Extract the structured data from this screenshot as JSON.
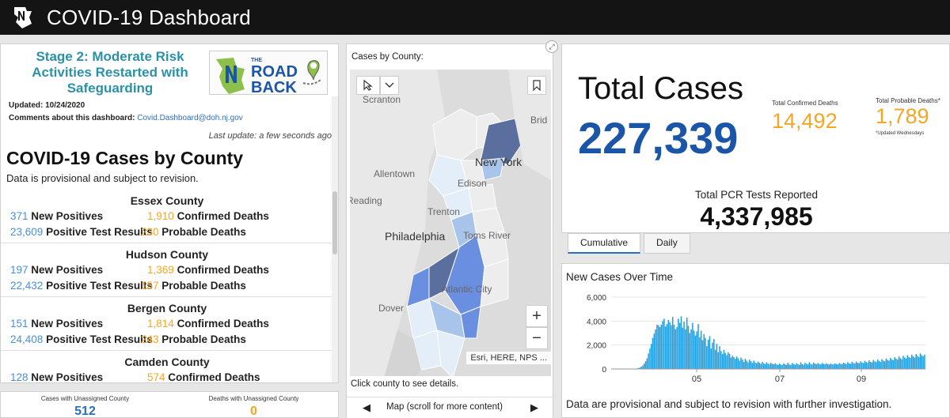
{
  "header": {
    "title": "COVID-19 Dashboard"
  },
  "stage": {
    "text": "Stage 2: Moderate Risk Activities Restarted with Safeguarding",
    "logo_small": "THE",
    "logo_big1": "ROAD",
    "logo_big2": "BACK"
  },
  "info": {
    "updated": "Updated: 10/24/2020",
    "comments_label": "Comments about this dashboard:",
    "email": "Covid.Dashboard@doh.nj.gov",
    "last_update": "Last update: a few seconds ago"
  },
  "list": {
    "title": "COVID-19 Cases by County",
    "subtitle": "Data is provisional and subject to revision.",
    "counties": [
      {
        "name": "Essex County",
        "new_pos": "371",
        "new_pos_label": "New Positives",
        "conf_deaths": "1,910",
        "conf_deaths_label": "Confirmed Deaths",
        "pos_tests": "23,609",
        "pos_tests_label": "Positive Test Results",
        "prob_deaths": "230",
        "prob_deaths_label": "Probable Deaths"
      },
      {
        "name": "Hudson County",
        "new_pos": "197",
        "new_pos_label": "New Positives",
        "conf_deaths": "1,369",
        "conf_deaths_label": "Confirmed Deaths",
        "pos_tests": "22,432",
        "pos_tests_label": "Positive Test Results",
        "prob_deaths": "157",
        "prob_deaths_label": "Probable Deaths"
      },
      {
        "name": "Bergen County",
        "new_pos": "151",
        "new_pos_label": "New Positives",
        "conf_deaths": "1,814",
        "conf_deaths_label": "Confirmed Deaths",
        "pos_tests": "24,408",
        "pos_tests_label": "Positive Test Results",
        "prob_deaths": "243",
        "prob_deaths_label": "Probable Deaths"
      },
      {
        "name": "Camden County",
        "new_pos": "128",
        "new_pos_label": "New Positives",
        "conf_deaths": "574",
        "conf_deaths_label": "Confirmed Deaths",
        "pos_tests": "",
        "pos_tests_label": "",
        "prob_deaths": "",
        "prob_deaths_label": ""
      }
    ]
  },
  "unassigned": {
    "cases_label": "Cases with Unassigned County",
    "cases_value": "512",
    "deaths_label": "Deaths with Unassigned County",
    "deaths_value": "0"
  },
  "map": {
    "title": "Cases by County:",
    "labels": {
      "scranton": "Scranton",
      "bridge": "Brid",
      "newyork": "New York",
      "allentown": "Allentown",
      "edison": "Edison",
      "reading": "Reading",
      "trenton": "Trenton",
      "philadelphia": "Philadelphia",
      "tomsriver": "Toms River",
      "atlanticcity": "Atlantic City",
      "dover": "Dover"
    },
    "attribution": "Esri, HERE, NPS ...",
    "zoom_in": "+",
    "zoom_out": "−",
    "click_note": "Click county to see details.",
    "nav_label": "Map (scroll for more content)",
    "colors": {
      "low": "#e3eef8",
      "mid": "#a9c4ea",
      "high": "#6b8fe0",
      "top": "#5a6f9e"
    }
  },
  "totals": {
    "total_label": "Total Cases",
    "total_value": "227,339",
    "confirmed_deaths_label": "Total Confirmed Deaths",
    "confirmed_deaths_value": "14,492",
    "probable_deaths_label": "Total Probable Deaths*",
    "probable_deaths_value": "1,789",
    "probable_note": "*Updated Wednesdays",
    "pcr_label": "Total PCR Tests Reported",
    "pcr_value": "4,337,985"
  },
  "tabs": [
    {
      "label": "Cumulative",
      "active": true
    },
    {
      "label": "Daily",
      "active": false
    }
  ],
  "chart": {
    "title": "New Cases Over Time",
    "note": "Data are provisional and subject to revision with further investigation."
  },
  "chart_data": {
    "type": "bar",
    "title": "New Cases Over Time",
    "ylim": [
      0,
      6000
    ],
    "yticks": [
      0,
      2000,
      4000,
      6000
    ],
    "ytick_labels": [
      "0",
      "2,000",
      "4,000",
      "6,000"
    ],
    "xtick_labels": [
      "05",
      "07",
      "09"
    ],
    "color": "#1f9fe0",
    "x_start": "2020-03-04",
    "values": [
      0,
      0,
      0,
      0,
      0,
      50,
      80,
      120,
      200,
      300,
      450,
      650,
      900,
      1300,
      1700,
      2100,
      2600,
      2950,
      3300,
      3700,
      3650,
      3500,
      3700,
      4000,
      4200,
      3550,
      3750,
      4100,
      3900,
      3650,
      4350,
      3700,
      3300,
      3500,
      4200,
      3850,
      4400,
      3450,
      3950,
      3300,
      4300,
      3600,
      3000,
      3300,
      3850,
      3200,
      2800,
      3150,
      3750,
      2650,
      3200,
      2400,
      2900,
      2600,
      1900,
      2450,
      2750,
      1700,
      2200,
      2500,
      1600,
      2100,
      1400,
      1900,
      1500,
      1250,
      1600,
      1350,
      1150,
      1400,
      1250,
      950,
      1100,
      1000,
      850,
      1050,
      900,
      700,
      950,
      800,
      600,
      850,
      700,
      550,
      780,
      650,
      500,
      700,
      550,
      480,
      620,
      520,
      430,
      600,
      480,
      400,
      560,
      450,
      390,
      520,
      420,
      400,
      480,
      380,
      350,
      450,
      380,
      330,
      480,
      400,
      350,
      520,
      380,
      330,
      500,
      420,
      350,
      480,
      400,
      350,
      560,
      400,
      360,
      520,
      430,
      380,
      560,
      420,
      380,
      540,
      450,
      400,
      500,
      420,
      380,
      500,
      430,
      390,
      470,
      410,
      370,
      450,
      400,
      380,
      470,
      410,
      380,
      490,
      430,
      400,
      540,
      460,
      420,
      560,
      480,
      430,
      600,
      500,
      460,
      620,
      520,
      480,
      640,
      550,
      500,
      680,
      580,
      520,
      720,
      600,
      540,
      760,
      640,
      580,
      800,
      680,
      600,
      820,
      700,
      640,
      880,
      760,
      700,
      920,
      800,
      740,
      980,
      860,
      780,
      1050,
      900,
      820,
      1100,
      960,
      880,
      1150,
      1000,
      920,
      1200,
      1050,
      950,
      1250,
      1100,
      1000,
      1300,
      1150,
      1050,
      1200
    ]
  }
}
